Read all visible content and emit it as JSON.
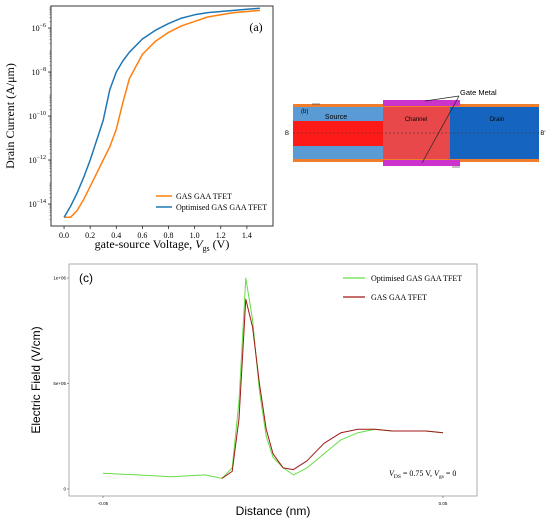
{
  "chart_data": [
    {
      "type": "line",
      "panel_label": "(a)",
      "ylabel": "Drain Current (A/μm)",
      "xlabel_prefix": "gate-source Voltage, ",
      "xlabel_var": "V",
      "xlabel_sub": "gs",
      "xlabel_suffix": " (V)",
      "yscale": "log",
      "xlim": [
        -0.1,
        1.6
      ],
      "ylim_log10": [
        -15.0,
        -5.0
      ],
      "x_ticks": [
        "0.0",
        "0.2",
        "0.4",
        "0.6",
        "0.8",
        "1.0",
        "1.2",
        "1.4"
      ],
      "x_tick_values": [
        0.0,
        0.2,
        0.4,
        0.6,
        0.8,
        1.0,
        1.2,
        1.4
      ],
      "y_ticks": [
        {
          "base": "10",
          "exp": "−14",
          "log10": -14
        },
        {
          "base": "10",
          "exp": "−12",
          "log10": -12
        },
        {
          "base": "10",
          "exp": "−10",
          "log10": -10
        },
        {
          "base": "10",
          "exp": "−8",
          "log10": -8
        },
        {
          "base": "10",
          "exp": "−6",
          "log10": -6
        }
      ],
      "legend_position": "lower-right",
      "series": [
        {
          "name": "GAS GAA TFET",
          "color": "#ff7f0e",
          "x": [
            0.0,
            0.05,
            0.1,
            0.15,
            0.2,
            0.25,
            0.3,
            0.35,
            0.4,
            0.45,
            0.5,
            0.6,
            0.7,
            0.8,
            0.9,
            1.0,
            1.1,
            1.2,
            1.3,
            1.4,
            1.5
          ],
          "log10_y": [
            -14.6,
            -14.6,
            -14.3,
            -13.8,
            -13.2,
            -12.6,
            -12.0,
            -11.4,
            -10.6,
            -9.4,
            -8.3,
            -7.2,
            -6.6,
            -6.2,
            -5.9,
            -5.7,
            -5.5,
            -5.4,
            -5.3,
            -5.25,
            -5.2
          ]
        },
        {
          "name": "Optimised GAS GAA TFET",
          "color": "#1f77b4",
          "x": [
            0.0,
            0.05,
            0.1,
            0.15,
            0.2,
            0.25,
            0.3,
            0.35,
            0.4,
            0.45,
            0.5,
            0.6,
            0.7,
            0.8,
            0.9,
            1.0,
            1.1,
            1.2,
            1.3,
            1.4,
            1.5
          ],
          "log10_y": [
            -14.6,
            -14.1,
            -13.5,
            -12.8,
            -12.0,
            -11.1,
            -10.2,
            -8.8,
            -8.0,
            -7.5,
            -7.1,
            -6.5,
            -6.1,
            -5.8,
            -5.55,
            -5.4,
            -5.3,
            -5.25,
            -5.2,
            -5.15,
            -5.1
          ]
        }
      ]
    },
    {
      "type": "diagram",
      "panel_label": "(b)",
      "labels": {
        "gate_metal": "Gate Metal",
        "source": "Source",
        "channel": "Channel",
        "drain": "Drain",
        "b_left": "B",
        "b_right": "B'"
      }
    },
    {
      "type": "line",
      "panel_label": "(c)",
      "ylabel": "Electric Field (V/cm)",
      "xlabel": "Distance (nm)",
      "annotation": "V_DS = 0.75 V, V_gs = 0",
      "annotation_parts": {
        "v": "V",
        "ds": "DS",
        "mid": " = 0.75 V, ",
        "gs": "gs",
        "end": " = 0"
      },
      "xlim": [
        -0.06,
        0.06
      ],
      "ylim": [
        -0.2,
        6.4
      ],
      "x_ticks": [
        "-0.05",
        "0.05"
      ],
      "x_tick_values": [
        -0.05,
        0.05
      ],
      "y_ticks": [
        "1e+06",
        "5e+05",
        "0"
      ],
      "y_tick_values": [
        6.0,
        3.0,
        0.0
      ],
      "legend_position": "upper-right",
      "series": [
        {
          "name": "Optimised GAS GAA TFET",
          "color": "#66dd44",
          "x": [
            -0.05,
            -0.04,
            -0.03,
            -0.02,
            -0.015,
            -0.012,
            -0.01,
            -0.008,
            -0.006,
            -0.004,
            -0.002,
            0.0,
            0.003,
            0.006,
            0.01,
            0.015,
            0.02,
            0.025,
            0.03,
            0.035,
            0.04,
            0.045,
            0.05
          ],
          "y": [
            0.45,
            0.4,
            0.35,
            0.4,
            0.3,
            0.6,
            2.5,
            6.0,
            4.8,
            2.8,
            1.5,
            0.9,
            0.6,
            0.4,
            0.6,
            1.0,
            1.4,
            1.6,
            1.7,
            1.65,
            1.65,
            1.65,
            1.6
          ]
        },
        {
          "name": "GAS GAA TFET",
          "color": "#a01818",
          "x": [
            -0.015,
            -0.012,
            -0.01,
            -0.008,
            -0.006,
            -0.004,
            -0.002,
            0.0,
            0.003,
            0.006,
            0.01,
            0.015,
            0.02,
            0.025,
            0.03,
            0.035,
            0.04,
            0.045,
            0.05
          ],
          "y": [
            0.3,
            0.5,
            2.0,
            5.4,
            4.6,
            3.0,
            1.7,
            1.0,
            0.6,
            0.55,
            0.8,
            1.3,
            1.6,
            1.7,
            1.7,
            1.65,
            1.65,
            1.65,
            1.6
          ]
        }
      ]
    }
  ]
}
